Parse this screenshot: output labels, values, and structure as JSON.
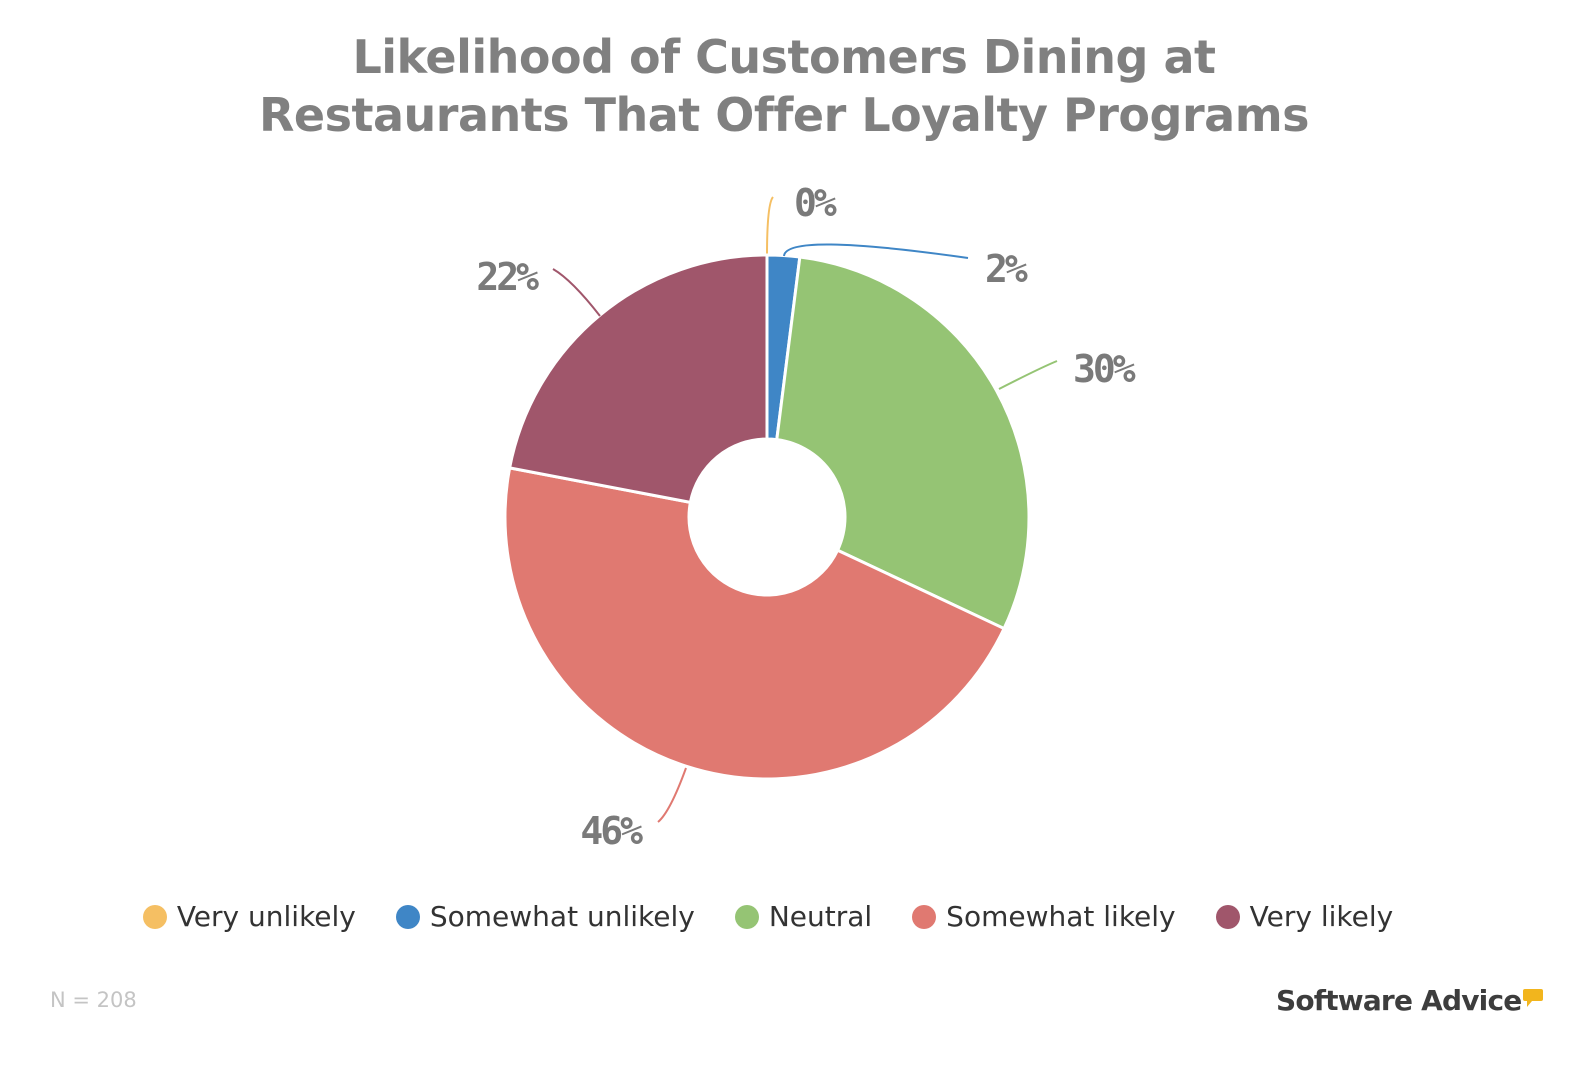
{
  "chart_data": {
    "type": "pie",
    "donut": true,
    "title": [
      "Likelihood of Customers Dining at",
      "Restaurants That Offer Loyalty Programs"
    ],
    "categories": [
      "Very unlikely",
      "Somewhat unlikely",
      "Neutral",
      "Somewhat likely",
      "Very likely"
    ],
    "values": [
      0,
      2,
      30,
      46,
      22
    ],
    "data_labels": [
      "0%",
      "2%",
      "30%",
      "46%",
      "22%"
    ],
    "colors": [
      "#f5bf63",
      "#3f86c6",
      "#95c474",
      "#e07971",
      "#a0566b"
    ],
    "legend_position": "bottom"
  },
  "footnote": "N = 208",
  "brand": {
    "name": "Software Advice",
    "color": "#f2b51d"
  }
}
